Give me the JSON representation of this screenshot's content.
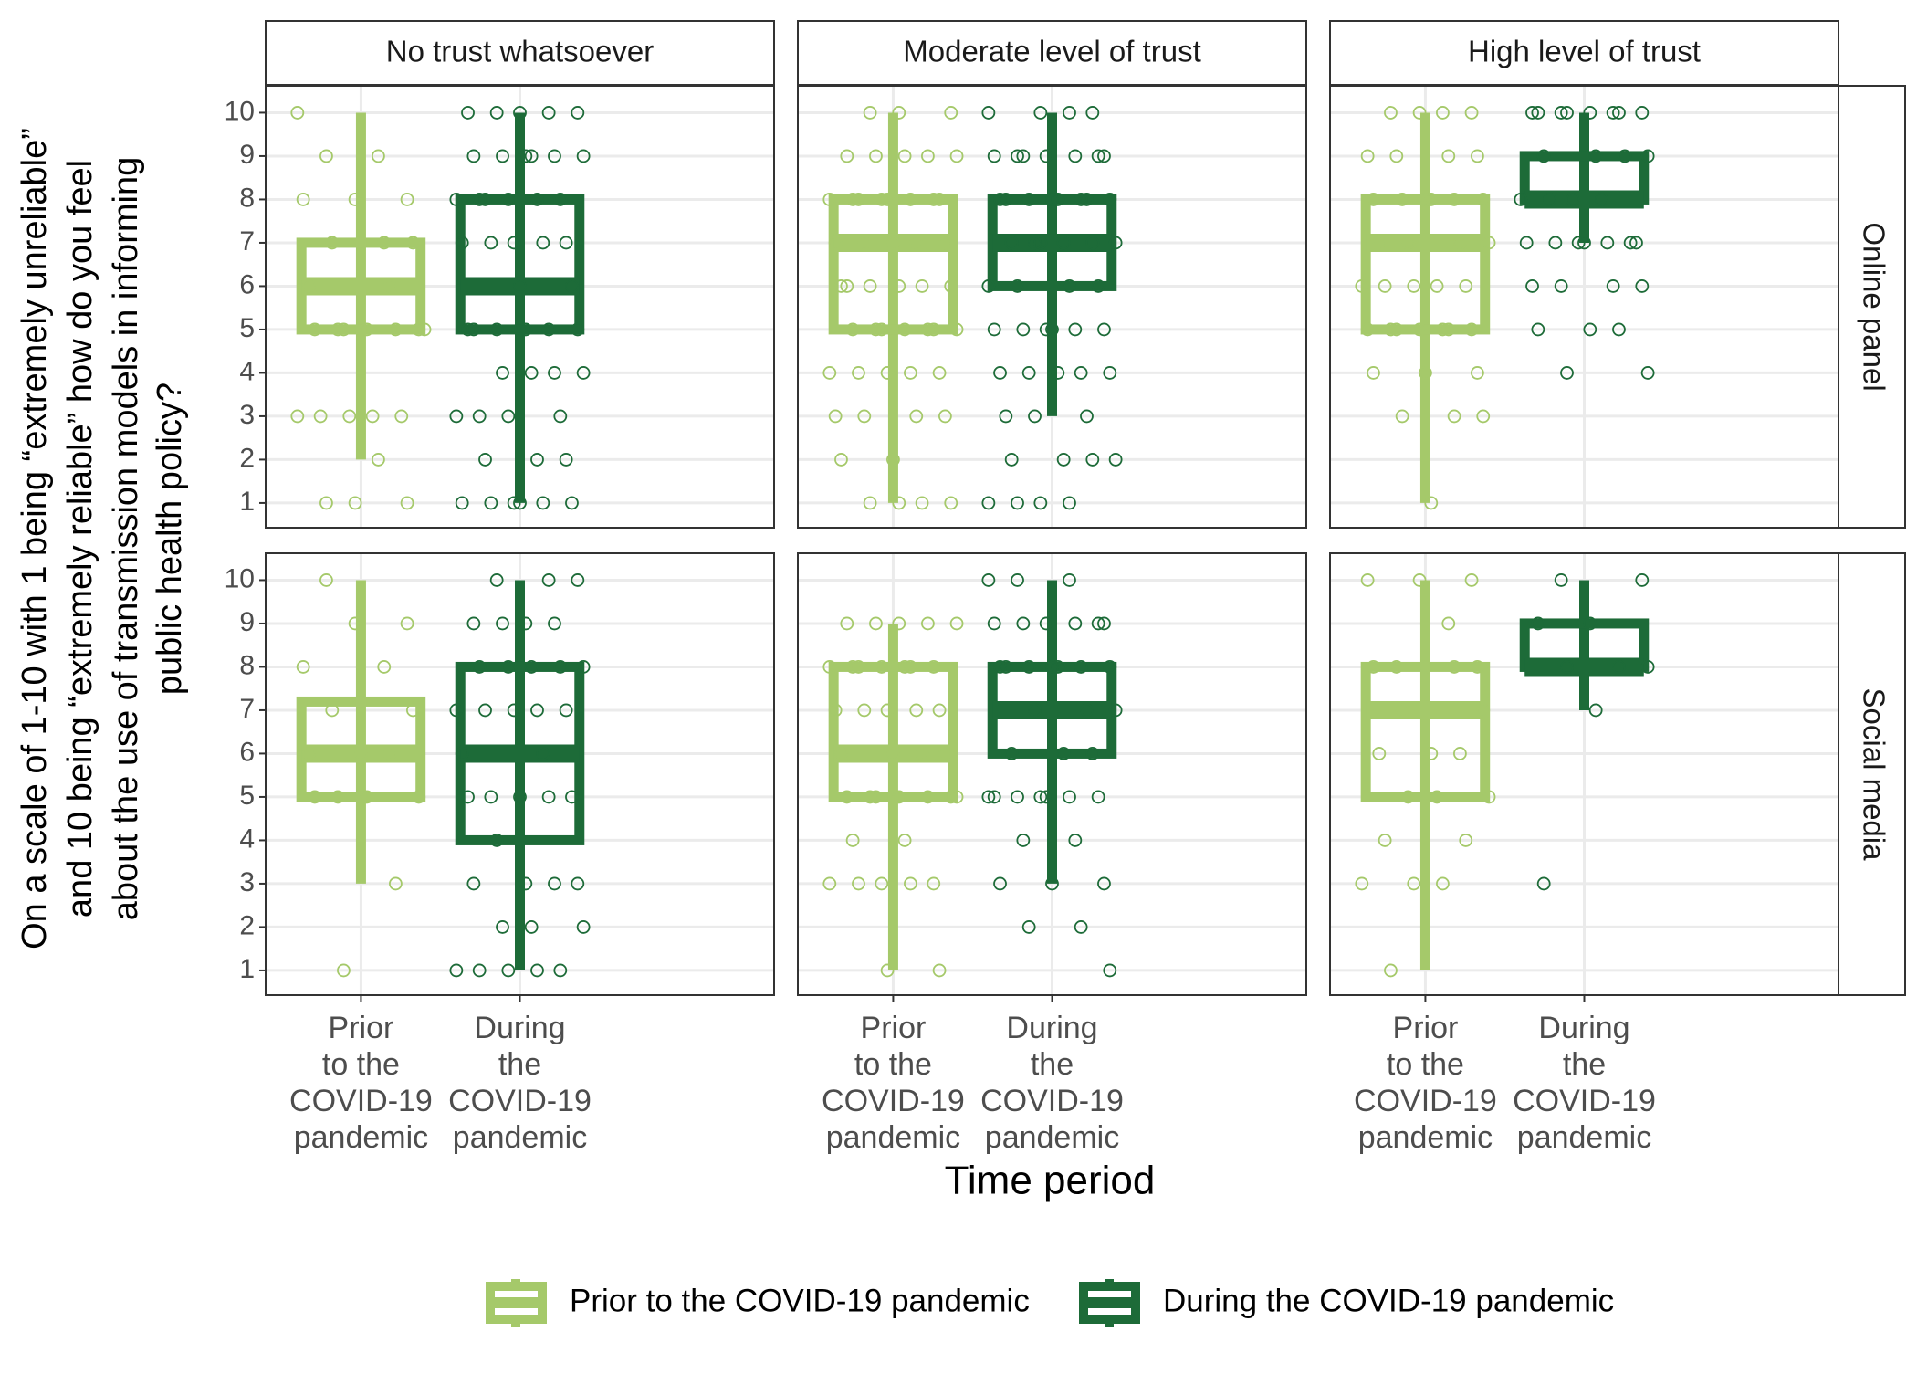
{
  "chart_data": {
    "type": "box",
    "x_label": "Time period",
    "y_label": [
      "On a scale of 1-10 with 1 being “extremely unreliable”",
      "and 10 being “extremely reliable” how do you feel",
      "about the use of transmission models in informing",
      "public health policy?"
    ],
    "columns": [
      "No trust whatsoever",
      "Moderate level of trust",
      "High level of trust"
    ],
    "rows": [
      "Online panel",
      "Social media"
    ],
    "categories": [
      [
        "Prior",
        "to the",
        "COVID-19",
        "pandemic"
      ],
      [
        "During",
        "the",
        "COVID-19",
        "pandemic"
      ]
    ],
    "ylim": [
      0.43,
      10.62
    ],
    "yticks": [
      1,
      2,
      3,
      4,
      5,
      6,
      7,
      8,
      9,
      10
    ],
    "grid": true,
    "series": [
      {
        "name": "Prior to the COVID-19 pandemic",
        "color": "#a5c96a",
        "panels": [
          [
            {
              "min": 2,
              "q1": 5,
              "median": 6,
              "q3": 7,
              "max": 10,
              "points": [
                10,
                9,
                9,
                8,
                8,
                8,
                7,
                7,
                7,
                7,
                6,
                6,
                5,
                5,
                5,
                5,
                5,
                5,
                5,
                3,
                3,
                3,
                3,
                3,
                2,
                1,
                1,
                1
              ]
            },
            {
              "min": 1,
              "q1": 5,
              "median": 7,
              "q3": 8,
              "max": 10,
              "points": [
                10,
                10,
                10,
                9,
                9,
                9,
                9,
                9,
                8,
                8,
                8,
                8,
                8,
                8,
                8,
                8,
                7,
                7,
                7,
                7,
                7,
                6,
                6,
                6,
                6,
                6,
                6,
                5,
                5,
                5,
                5,
                5,
                5,
                5,
                4,
                4,
                4,
                4,
                4,
                3,
                3,
                3,
                3,
                2,
                2,
                1,
                1,
                1,
                1
              ]
            },
            {
              "min": 1,
              "q1": 5,
              "median": 7,
              "q3": 8,
              "max": 10,
              "points": [
                10,
                10,
                10,
                10,
                9,
                9,
                9,
                9,
                8,
                8,
                8,
                8,
                8,
                8,
                7,
                7,
                7,
                7,
                6,
                6,
                6,
                6,
                6,
                5,
                5,
                5,
                5,
                5,
                5,
                5,
                4,
                4,
                4,
                3,
                3,
                3,
                1
              ]
            }
          ],
          [
            {
              "min": 3,
              "q1": 5,
              "median": 6,
              "q3": 7.2,
              "max": 10,
              "points": [
                10,
                9,
                9,
                8,
                8,
                7,
                7,
                6,
                6,
                6,
                5,
                5,
                5,
                5,
                3,
                1
              ]
            },
            {
              "min": 1,
              "q1": 5,
              "median": 6,
              "q3": 8,
              "max": 9,
              "points": [
                9,
                9,
                9,
                9,
                9,
                8,
                8,
                8,
                8,
                8,
                8,
                8,
                7,
                7,
                7,
                7,
                7,
                6,
                6,
                6,
                6,
                5,
                5,
                5,
                5,
                5,
                5,
                5,
                4,
                4,
                3,
                3,
                3,
                3,
                3,
                1,
                1
              ]
            },
            {
              "min": 1,
              "q1": 5,
              "median": 7,
              "q3": 8,
              "max": 10,
              "points": [
                10,
                10,
                10,
                9,
                8,
                8,
                8,
                8,
                8,
                7,
                7,
                6,
                6,
                6,
                5,
                5,
                5,
                4,
                4,
                3,
                3,
                3,
                1
              ]
            }
          ]
        ]
      },
      {
        "name": "During the COVID-19 pandemic",
        "color": "#1d6b38",
        "panels": [
          [
            {
              "min": 1,
              "q1": 5,
              "median": 6,
              "q3": 8,
              "max": 10,
              "points": [
                10,
                10,
                10,
                10,
                10,
                9,
                9,
                9,
                9,
                9,
                9,
                8,
                8,
                8,
                8,
                8,
                8,
                7,
                7,
                7,
                7,
                7,
                6,
                6,
                5,
                5,
                5,
                5,
                5,
                5,
                4,
                4,
                4,
                4,
                3,
                3,
                3,
                3,
                2,
                2,
                2,
                1,
                1,
                1,
                1,
                1,
                1
              ]
            },
            {
              "min": 3,
              "q1": 6,
              "median": 7,
              "q3": 8,
              "max": 10,
              "points": [
                10,
                10,
                10,
                10,
                9,
                9,
                9,
                9,
                9,
                9,
                9,
                8,
                8,
                8,
                8,
                8,
                8,
                8,
                8,
                7,
                7,
                7,
                7,
                7,
                7,
                6,
                6,
                6,
                6,
                5,
                5,
                5,
                5,
                5,
                5,
                4,
                4,
                4,
                4,
                4,
                3,
                3,
                3,
                2,
                2,
                2,
                2,
                1,
                1,
                1,
                1
              ]
            },
            {
              "min": 7,
              "q1": 8,
              "median": 8,
              "q3": 9,
              "max": 10,
              "points": [
                10,
                10,
                10,
                10,
                10,
                10,
                10,
                10,
                9,
                9,
                9,
                9,
                8,
                8,
                8,
                8,
                7,
                7,
                7,
                7,
                7,
                7,
                7,
                6,
                6,
                6,
                6,
                5,
                5,
                5,
                4,
                4
              ]
            }
          ],
          [
            {
              "min": 1,
              "q1": 4,
              "median": 6,
              "q3": 8,
              "max": 10,
              "points": [
                10,
                10,
                10,
                9,
                9,
                9,
                9,
                8,
                8,
                8,
                8,
                8,
                7,
                7,
                7,
                7,
                7,
                6,
                6,
                5,
                5,
                5,
                5,
                5,
                4,
                3,
                3,
                3,
                3,
                2,
                2,
                2,
                1,
                1,
                1,
                1,
                1
              ]
            },
            {
              "min": 3,
              "q1": 6,
              "median": 7,
              "q3": 8,
              "max": 10,
              "points": [
                10,
                10,
                10,
                9,
                9,
                9,
                9,
                9,
                9,
                8,
                8,
                8,
                8,
                8,
                8,
                8,
                7,
                7,
                7,
                6,
                6,
                6,
                5,
                5,
                5,
                5,
                5,
                5,
                5,
                4,
                4,
                3,
                3,
                3,
                2,
                2,
                1
              ]
            },
            {
              "min": 7,
              "q1": 8,
              "median": 8,
              "q3": 9,
              "max": 10,
              "points": [
                10,
                10,
                9,
                9,
                8,
                8,
                8,
                7,
                3
              ]
            }
          ]
        ]
      }
    ]
  }
}
